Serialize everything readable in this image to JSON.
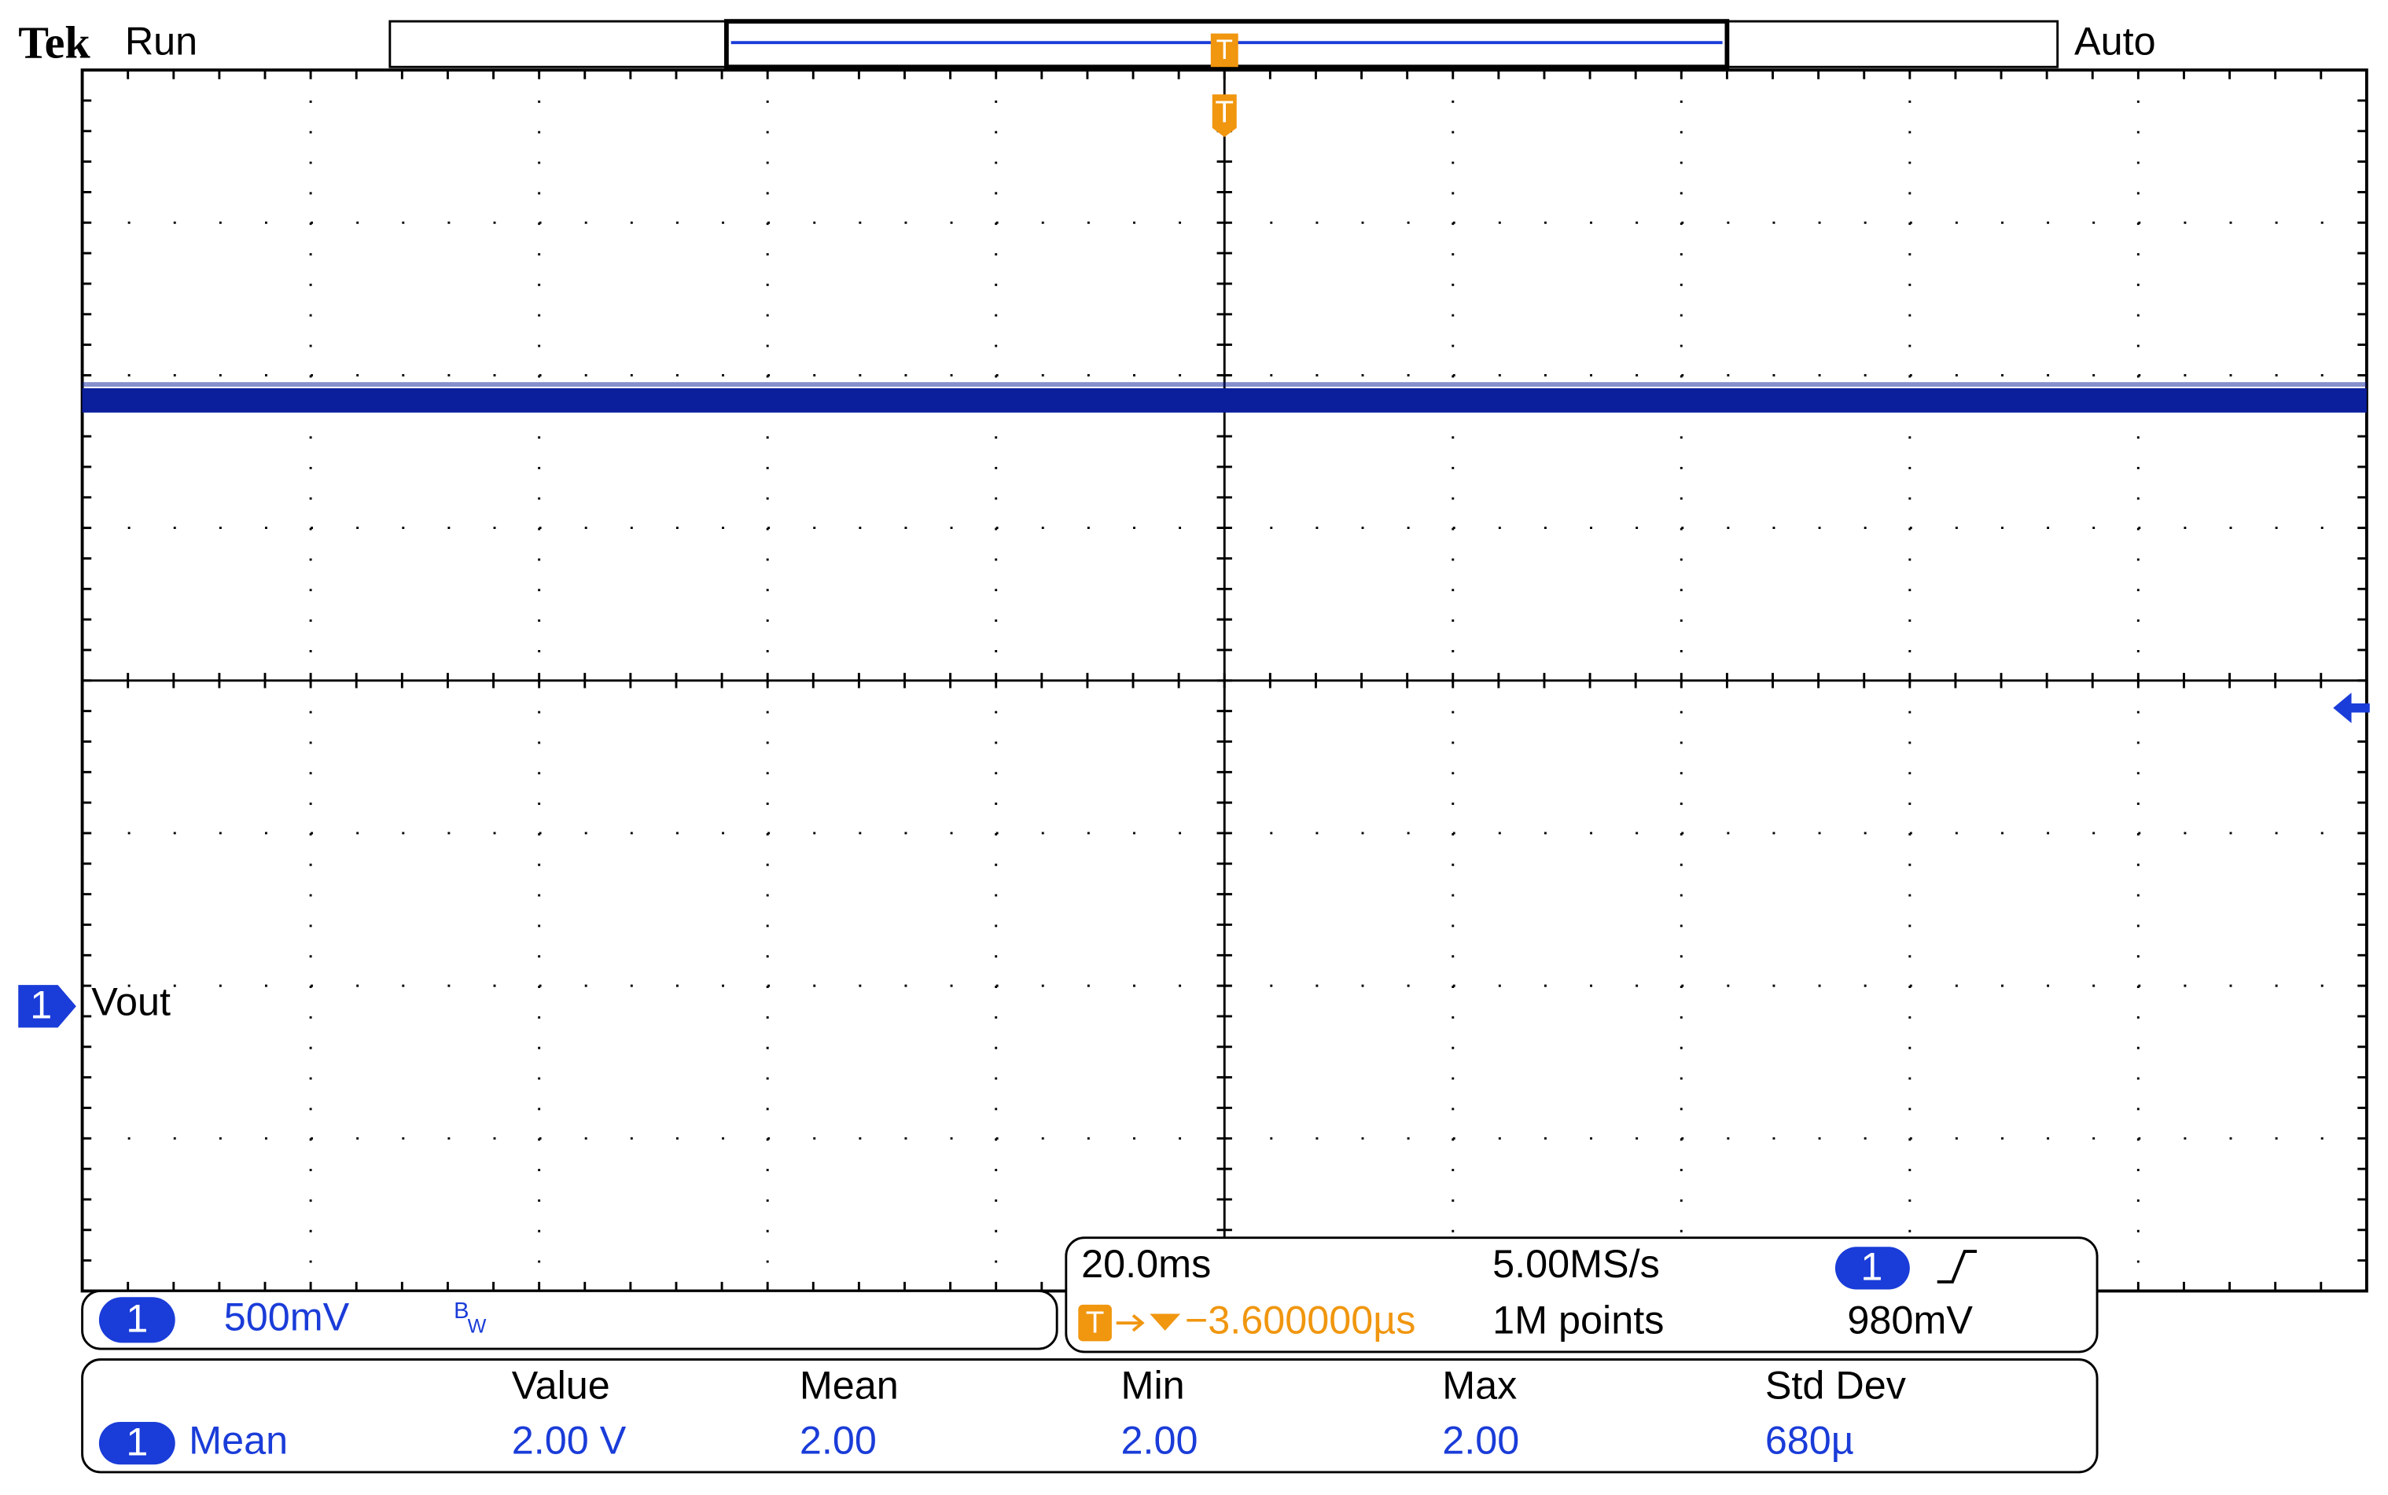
{
  "header": {
    "brand": "Tek",
    "state": "Run",
    "trigger_mode": "Auto",
    "trigger_marker": "T"
  },
  "channel_marker": {
    "number": "1",
    "label": "Vout"
  },
  "channel_panel": {
    "number": "1",
    "scale": "500mV",
    "bandwidth": "B",
    "bandwidth_sub": "W"
  },
  "timebase_panel": {
    "scale": "20.0ms",
    "sample_rate": "5.00MS/s",
    "trigger_icon": "T",
    "trigger_offset": "−3.600000µs",
    "record_length": "1M points",
    "trigger_channel": "1",
    "trigger_level": "980mV"
  },
  "measurements": {
    "headers": [
      "Value",
      "Mean",
      "Min",
      "Max",
      "Std Dev"
    ],
    "rows": [
      {
        "channel": "1",
        "name": "Mean",
        "cells": [
          "2.00 V",
          "2.00",
          "2.00",
          "2.00",
          "680µ"
        ]
      }
    ]
  }
}
